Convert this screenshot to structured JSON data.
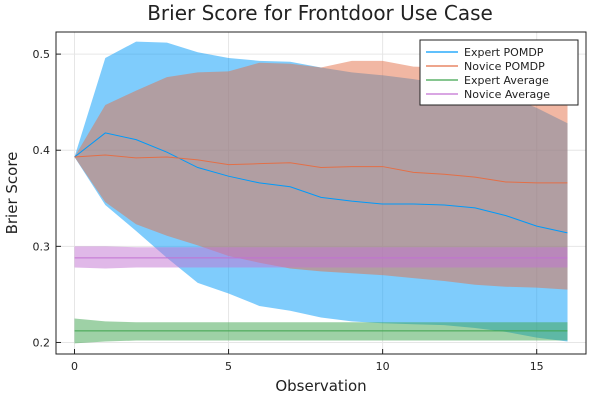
{
  "chart_data": {
    "type": "line",
    "title": "Brier Score for Frontdoor Use Case",
    "xlabel": "Observation",
    "ylabel": "Brier Score",
    "xlim": [
      -0.6,
      16.6
    ],
    "ylim": [
      0.188,
      0.523
    ],
    "xticks": [
      0,
      5,
      10,
      15
    ],
    "yticks": [
      0.2,
      0.3,
      0.4,
      0.5
    ],
    "xtick_labels": [
      "0",
      "5",
      "10",
      "15"
    ],
    "ytick_labels": [
      "0.2",
      "0.3",
      "0.4",
      "0.5"
    ],
    "grid": true,
    "legend_position": "top-right",
    "x": [
      0,
      1,
      2,
      3,
      4,
      5,
      6,
      7,
      8,
      9,
      10,
      11,
      12,
      13,
      14,
      15,
      16
    ],
    "series": [
      {
        "name": "Expert POMDP",
        "color": "#009AFA",
        "values": [
          0.393,
          0.418,
          0.411,
          0.398,
          0.382,
          0.373,
          0.366,
          0.362,
          0.351,
          0.347,
          0.344,
          0.344,
          0.343,
          0.34,
          0.332,
          0.321,
          0.314
        ],
        "lower": [
          0.393,
          0.343,
          0.316,
          0.288,
          0.262,
          0.251,
          0.238,
          0.233,
          0.226,
          0.222,
          0.22,
          0.219,
          0.218,
          0.215,
          0.211,
          0.205,
          0.201
        ],
        "upper": [
          0.393,
          0.496,
          0.513,
          0.512,
          0.502,
          0.496,
          0.493,
          0.492,
          0.486,
          0.481,
          0.478,
          0.474,
          0.469,
          0.466,
          0.457,
          0.444,
          0.428
        ]
      },
      {
        "name": "Novice POMDP",
        "color": "#E36F47",
        "values": [
          0.393,
          0.395,
          0.392,
          0.393,
          0.39,
          0.385,
          0.386,
          0.387,
          0.382,
          0.383,
          0.383,
          0.377,
          0.375,
          0.372,
          0.367,
          0.366,
          0.366
        ],
        "lower": [
          0.393,
          0.346,
          0.323,
          0.311,
          0.301,
          0.29,
          0.283,
          0.277,
          0.274,
          0.272,
          0.27,
          0.267,
          0.264,
          0.26,
          0.258,
          0.257,
          0.255
        ],
        "upper": [
          0.393,
          0.447,
          0.462,
          0.476,
          0.481,
          0.482,
          0.491,
          0.49,
          0.486,
          0.493,
          0.493,
          0.487,
          0.486,
          0.483,
          0.479,
          0.477,
          0.474
        ]
      },
      {
        "name": "Expert Average",
        "color": "#3EA44E",
        "values": [
          0.212,
          0.212,
          0.212,
          0.212,
          0.212,
          0.212,
          0.212,
          0.212,
          0.212,
          0.212,
          0.212,
          0.212,
          0.212,
          0.212,
          0.212,
          0.212,
          0.212
        ],
        "lower": [
          0.199,
          0.201,
          0.202,
          0.202,
          0.202,
          0.202,
          0.202,
          0.202,
          0.202,
          0.202,
          0.202,
          0.202,
          0.202,
          0.202,
          0.202,
          0.202,
          0.202
        ],
        "upper": [
          0.225,
          0.222,
          0.221,
          0.221,
          0.221,
          0.221,
          0.221,
          0.221,
          0.221,
          0.221,
          0.221,
          0.221,
          0.221,
          0.221,
          0.221,
          0.221,
          0.221
        ]
      },
      {
        "name": "Novice Average",
        "color": "#C271D2",
        "values": [
          0.288,
          0.288,
          0.288,
          0.288,
          0.288,
          0.288,
          0.288,
          0.288,
          0.288,
          0.288,
          0.288,
          0.288,
          0.288,
          0.288,
          0.288,
          0.288,
          0.288
        ],
        "lower": [
          0.278,
          0.277,
          0.278,
          0.278,
          0.278,
          0.278,
          0.278,
          0.278,
          0.278,
          0.278,
          0.278,
          0.278,
          0.278,
          0.278,
          0.278,
          0.278,
          0.278
        ],
        "upper": [
          0.3,
          0.3,
          0.299,
          0.299,
          0.299,
          0.299,
          0.299,
          0.299,
          0.299,
          0.299,
          0.299,
          0.299,
          0.299,
          0.299,
          0.299,
          0.299,
          0.299
        ]
      }
    ]
  }
}
